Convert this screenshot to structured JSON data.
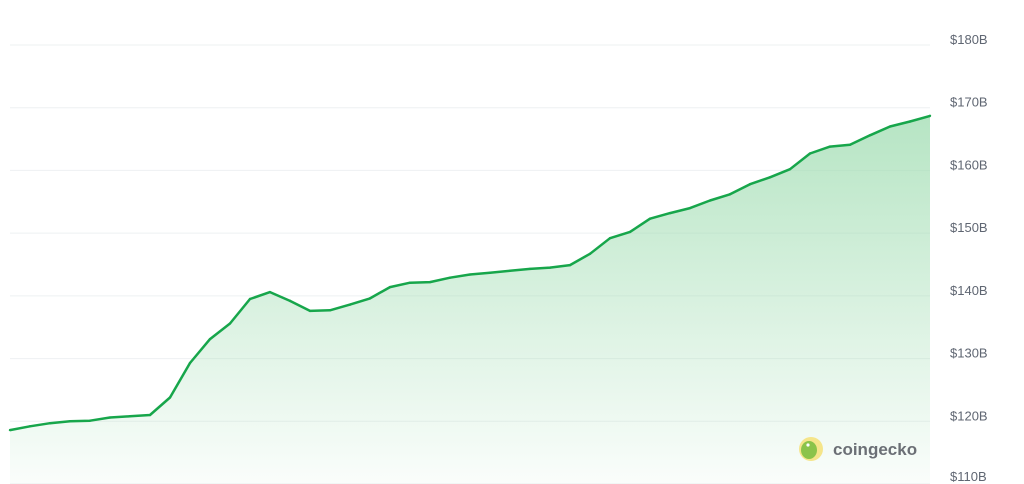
{
  "chart_data": {
    "type": "area",
    "title": "",
    "xlabel": "",
    "ylabel": "",
    "ylim": [
      110,
      180
    ],
    "yticks": [
      "$110B",
      "$120B",
      "$130B",
      "$140B",
      "$150B",
      "$160B",
      "$170B",
      "$180B"
    ],
    "ytick_values": [
      110,
      120,
      130,
      140,
      150,
      160,
      170,
      180
    ],
    "y_axis_position": "right",
    "grid": true,
    "legend": "none",
    "line_color": "#17a64b",
    "fill_color": "#9edcb0",
    "values": [
      118.6,
      119.2,
      119.7,
      120.0,
      120.1,
      120.6,
      120.8,
      121.0,
      123.8,
      129.3,
      133.1,
      135.6,
      139.5,
      140.6,
      139.2,
      137.6,
      137.7,
      138.6,
      139.6,
      141.4,
      142.1,
      142.2,
      142.9,
      143.4,
      143.7,
      144.0,
      144.3,
      144.5,
      144.9,
      146.7,
      149.2,
      150.2,
      152.3,
      153.2,
      154.0,
      155.2,
      156.2,
      157.8,
      158.9,
      160.2,
      162.7,
      163.8,
      164.1,
      165.6,
      167.0,
      167.8,
      168.7
    ]
  },
  "watermark": {
    "text": "coingecko"
  }
}
